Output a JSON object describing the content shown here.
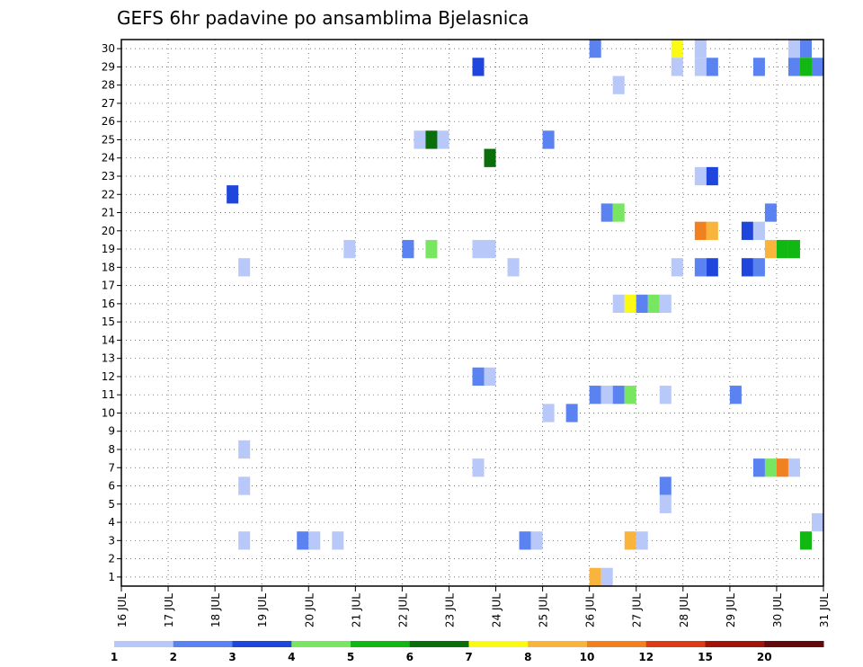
{
  "chart_data": {
    "type": "heatmap",
    "title": "GEFS 6hr padavine po ansamblima Bjelasnica",
    "y_ticks": [
      "1",
      "2",
      "3",
      "4",
      "5",
      "6",
      "7",
      "8",
      "9",
      "10",
      "11",
      "12",
      "13",
      "14",
      "15",
      "16",
      "17",
      "18",
      "19",
      "20",
      "21",
      "22",
      "23",
      "24",
      "25",
      "26",
      "27",
      "28",
      "29",
      "30"
    ],
    "x_ticks": [
      "16 JUL",
      "17 JUL",
      "18 JUL",
      "19 JUL",
      "20 JUL",
      "21 JUL",
      "22 JUL",
      "23 JUL",
      "24 JUL",
      "25 JUL",
      "26 JUL",
      "27 JUL",
      "28 JUL",
      "29 JUL",
      "30 JUL",
      "31 JUL"
    ],
    "x_range_days": [
      16,
      31
    ],
    "y_range": [
      1,
      30
    ],
    "grid": true,
    "colorbar": {
      "labels": [
        "1",
        "2",
        "3",
        "4",
        "5",
        "6",
        "7",
        "8",
        "10",
        "12",
        "15",
        "20"
      ],
      "colors": [
        "#b8c8f8",
        "#5a82f0",
        "#1e46dc",
        "#78e660",
        "#12b812",
        "#0a6e0a",
        "#fafa14",
        "#f8b43c",
        "#f08020",
        "#dc3c14",
        "#a0140a",
        "#640a0a"
      ]
    },
    "cells": [
      {
        "x": 26.0,
        "y": 30,
        "v": 2
      },
      {
        "x": 27.75,
        "y": 30,
        "v": 7
      },
      {
        "x": 28.25,
        "y": 30,
        "v": 1
      },
      {
        "x": 30.25,
        "y": 30,
        "v": 1
      },
      {
        "x": 30.5,
        "y": 30,
        "v": 2
      },
      {
        "x": 23.5,
        "y": 29,
        "v": 3
      },
      {
        "x": 27.75,
        "y": 29,
        "v": 1
      },
      {
        "x": 28.25,
        "y": 29,
        "v": 1
      },
      {
        "x": 28.5,
        "y": 29,
        "v": 2
      },
      {
        "x": 29.5,
        "y": 29,
        "v": 2
      },
      {
        "x": 30.25,
        "y": 29,
        "v": 2
      },
      {
        "x": 30.5,
        "y": 29,
        "v": 5
      },
      {
        "x": 30.75,
        "y": 29,
        "v": 2
      },
      {
        "x": 26.5,
        "y": 28,
        "v": 1
      },
      {
        "x": 22.25,
        "y": 25,
        "v": 1
      },
      {
        "x": 22.5,
        "y": 25,
        "v": 6
      },
      {
        "x": 22.75,
        "y": 25,
        "v": 1
      },
      {
        "x": 25.0,
        "y": 25,
        "v": 2
      },
      {
        "x": 23.75,
        "y": 24,
        "v": 6
      },
      {
        "x": 28.25,
        "y": 23,
        "v": 1
      },
      {
        "x": 28.5,
        "y": 23,
        "v": 3
      },
      {
        "x": 18.25,
        "y": 22,
        "v": 3
      },
      {
        "x": 26.25,
        "y": 21,
        "v": 2
      },
      {
        "x": 26.5,
        "y": 21,
        "v": 4
      },
      {
        "x": 29.75,
        "y": 21,
        "v": 2
      },
      {
        "x": 28.25,
        "y": 20,
        "v": 10
      },
      {
        "x": 28.5,
        "y": 20,
        "v": 8
      },
      {
        "x": 29.25,
        "y": 20,
        "v": 3
      },
      {
        "x": 29.5,
        "y": 20,
        "v": 1
      },
      {
        "x": 20.75,
        "y": 19,
        "v": 1
      },
      {
        "x": 22.0,
        "y": 19,
        "v": 2
      },
      {
        "x": 22.5,
        "y": 19,
        "v": 4
      },
      {
        "x": 23.5,
        "y": 19,
        "v": 1
      },
      {
        "x": 23.75,
        "y": 19,
        "v": 1
      },
      {
        "x": 29.75,
        "y": 19,
        "v": 8
      },
      {
        "x": 30.0,
        "y": 19,
        "v": 5
      },
      {
        "x": 30.25,
        "y": 19,
        "v": 5
      },
      {
        "x": 18.5,
        "y": 18,
        "v": 1
      },
      {
        "x": 24.25,
        "y": 18,
        "v": 1
      },
      {
        "x": 27.75,
        "y": 18,
        "v": 1
      },
      {
        "x": 28.25,
        "y": 18,
        "v": 2
      },
      {
        "x": 28.5,
        "y": 18,
        "v": 3
      },
      {
        "x": 29.25,
        "y": 18,
        "v": 3
      },
      {
        "x": 29.5,
        "y": 18,
        "v": 2
      },
      {
        "x": 26.5,
        "y": 16,
        "v": 1
      },
      {
        "x": 26.75,
        "y": 16,
        "v": 7
      },
      {
        "x": 27.0,
        "y": 16,
        "v": 2
      },
      {
        "x": 27.25,
        "y": 16,
        "v": 4
      },
      {
        "x": 27.5,
        "y": 16,
        "v": 1
      },
      {
        "x": 23.5,
        "y": 12,
        "v": 2
      },
      {
        "x": 23.75,
        "y": 12,
        "v": 1
      },
      {
        "x": 26.0,
        "y": 11,
        "v": 2
      },
      {
        "x": 26.25,
        "y": 11,
        "v": 1
      },
      {
        "x": 26.5,
        "y": 11,
        "v": 2
      },
      {
        "x": 26.75,
        "y": 11,
        "v": 4
      },
      {
        "x": 27.5,
        "y": 11,
        "v": 1
      },
      {
        "x": 29.0,
        "y": 11,
        "v": 2
      },
      {
        "x": 25.0,
        "y": 10,
        "v": 1
      },
      {
        "x": 25.5,
        "y": 10,
        "v": 2
      },
      {
        "x": 18.5,
        "y": 8,
        "v": 1
      },
      {
        "x": 23.5,
        "y": 7,
        "v": 1
      },
      {
        "x": 29.5,
        "y": 7,
        "v": 2
      },
      {
        "x": 29.75,
        "y": 7,
        "v": 4
      },
      {
        "x": 30.0,
        "y": 7,
        "v": 10
      },
      {
        "x": 30.25,
        "y": 7,
        "v": 1
      },
      {
        "x": 18.5,
        "y": 6,
        "v": 1
      },
      {
        "x": 27.5,
        "y": 6,
        "v": 2
      },
      {
        "x": 27.5,
        "y": 5,
        "v": 1
      },
      {
        "x": 30.75,
        "y": 4,
        "v": 1
      },
      {
        "x": 18.5,
        "y": 3,
        "v": 1
      },
      {
        "x": 19.75,
        "y": 3,
        "v": 2
      },
      {
        "x": 20.0,
        "y": 3,
        "v": 1
      },
      {
        "x": 20.5,
        "y": 3,
        "v": 1
      },
      {
        "x": 24.5,
        "y": 3,
        "v": 2
      },
      {
        "x": 24.75,
        "y": 3,
        "v": 1
      },
      {
        "x": 26.75,
        "y": 3,
        "v": 8
      },
      {
        "x": 27.0,
        "y": 3,
        "v": 1
      },
      {
        "x": 30.5,
        "y": 3,
        "v": 5
      },
      {
        "x": 26.0,
        "y": 1,
        "v": 8
      },
      {
        "x": 26.25,
        "y": 1,
        "v": 1
      }
    ]
  }
}
